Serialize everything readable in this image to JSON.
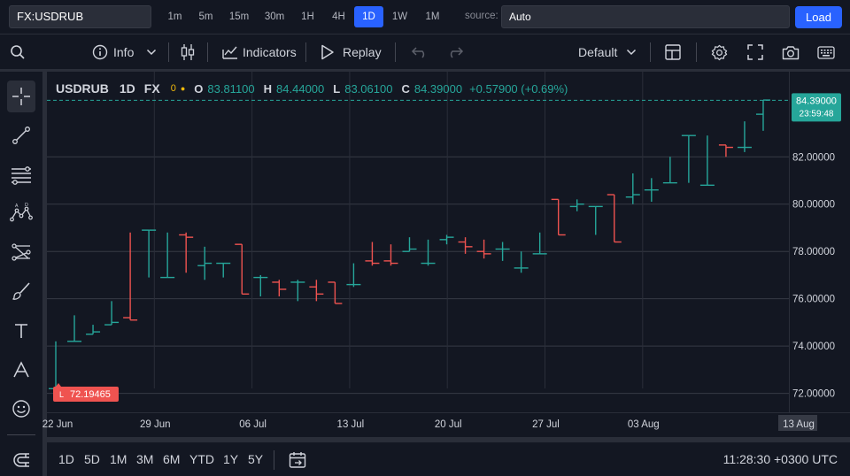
{
  "topbar": {
    "symbol": "FX:USDRUB",
    "intervals": [
      "1m",
      "5m",
      "15m",
      "30m",
      "1H",
      "4H",
      "1D",
      "1W",
      "1M"
    ],
    "active_interval": "1D",
    "source_label": "source:",
    "source_value": "Auto",
    "load_label": "Load"
  },
  "toolbar": {
    "info_label": "Info",
    "indicators_label": "Indicators",
    "replay_label": "Replay",
    "layout_label": "Default"
  },
  "legend": {
    "symbol": "USDRUB",
    "interval": "1D",
    "exchange": "FX",
    "zero": "0",
    "open_key": "O",
    "open": "83.81100",
    "high_key": "H",
    "high": "84.44000",
    "low_key": "L",
    "low": "83.06100",
    "close_key": "C",
    "close": "84.39000",
    "change": "+0.57900 (+0.69%)"
  },
  "colors": {
    "up": "#26a69a",
    "down": "#ef5350",
    "accent": "#2962ff",
    "background": "#131722"
  },
  "chart_data": {
    "type": "ohlc",
    "ylim": [
      71.2,
      85.6
    ],
    "y_ticks": [
      "72.00000",
      "74.00000",
      "76.00000",
      "78.00000",
      "80.00000",
      "82.00000"
    ],
    "x_ticks": [
      "22 Jun",
      "29 Jun",
      "06 Jul",
      "13 Jul",
      "20 Jul",
      "27 Jul",
      "03 Aug",
      "13 Aug"
    ],
    "last_price": "84.39000",
    "countdown": "23:59:48",
    "low_marker_key": "L",
    "low_marker": "72.19465",
    "bars": [
      {
        "o": 72.2,
        "h": 74.2,
        "l": 72.2,
        "c": 72.2
      },
      {
        "o": 74.2,
        "h": 75.3,
        "l": 74.2,
        "c": 74.2
      },
      {
        "o": 74.5,
        "h": 74.9,
        "l": 74.5,
        "c": 74.6
      },
      {
        "o": 74.9,
        "h": 75.9,
        "l": 74.9,
        "c": 75.0
      },
      {
        "o": 75.2,
        "h": 78.8,
        "l": 75.1,
        "c": 75.1
      },
      {
        "o": 78.9,
        "h": 78.9,
        "l": 76.9,
        "c": 78.9
      },
      {
        "o": 76.9,
        "h": 78.8,
        "l": 76.9,
        "c": 76.9
      },
      {
        "o": 78.7,
        "h": 78.8,
        "l": 77.1,
        "c": 78.6
      },
      {
        "o": 77.4,
        "h": 78.2,
        "l": 76.8,
        "c": 77.5
      },
      {
        "o": 77.5,
        "h": 77.5,
        "l": 76.9,
        "c": 77.5
      },
      {
        "o": 78.3,
        "h": 78.3,
        "l": 76.2,
        "c": 76.2
      },
      {
        "o": 76.9,
        "h": 77.0,
        "l": 76.1,
        "c": 76.9
      },
      {
        "o": 76.7,
        "h": 76.8,
        "l": 76.1,
        "c": 76.4
      },
      {
        "o": 76.7,
        "h": 76.8,
        "l": 75.9,
        "c": 76.7
      },
      {
        "o": 76.5,
        "h": 76.8,
        "l": 75.9,
        "c": 76.2
      },
      {
        "o": 76.7,
        "h": 76.7,
        "l": 75.8,
        "c": 75.8
      },
      {
        "o": 76.6,
        "h": 77.5,
        "l": 76.5,
        "c": 76.6
      },
      {
        "o": 77.6,
        "h": 78.4,
        "l": 77.4,
        "c": 77.5
      },
      {
        "o": 77.6,
        "h": 78.3,
        "l": 77.4,
        "c": 77.5
      },
      {
        "o": 78.0,
        "h": 78.6,
        "l": 78.0,
        "c": 78.1
      },
      {
        "o": 77.5,
        "h": 78.5,
        "l": 77.4,
        "c": 77.5
      },
      {
        "o": 78.5,
        "h": 78.7,
        "l": 78.3,
        "c": 78.6
      },
      {
        "o": 78.4,
        "h": 78.6,
        "l": 77.9,
        "c": 78.2
      },
      {
        "o": 78.0,
        "h": 78.5,
        "l": 77.7,
        "c": 77.9
      },
      {
        "o": 78.1,
        "h": 78.4,
        "l": 77.6,
        "c": 78.1
      },
      {
        "o": 77.3,
        "h": 78.0,
        "l": 77.1,
        "c": 77.3
      },
      {
        "o": 77.9,
        "h": 78.8,
        "l": 77.9,
        "c": 77.9
      },
      {
        "o": 80.2,
        "h": 80.2,
        "l": 78.7,
        "c": 78.7
      },
      {
        "o": 79.9,
        "h": 80.2,
        "l": 79.7,
        "c": 80.0
      },
      {
        "o": 79.9,
        "h": 79.9,
        "l": 78.7,
        "c": 79.9
      },
      {
        "o": 80.4,
        "h": 80.4,
        "l": 78.4,
        "c": 78.4
      },
      {
        "o": 80.3,
        "h": 81.3,
        "l": 80.0,
        "c": 80.4
      },
      {
        "o": 80.6,
        "h": 81.1,
        "l": 80.1,
        "c": 80.6
      },
      {
        "o": 80.9,
        "h": 82.0,
        "l": 80.9,
        "c": 80.9
      },
      {
        "o": 82.9,
        "h": 82.9,
        "l": 80.9,
        "c": 82.9
      },
      {
        "o": 80.8,
        "h": 82.9,
        "l": 80.8,
        "c": 80.8
      },
      {
        "o": 82.5,
        "h": 82.5,
        "l": 82.0,
        "c": 82.4
      },
      {
        "o": 82.4,
        "h": 83.5,
        "l": 82.2,
        "c": 82.4
      },
      {
        "o": 83.8,
        "h": 84.4,
        "l": 83.1,
        "c": 84.4
      }
    ]
  },
  "bottombar": {
    "ranges": [
      "1D",
      "5D",
      "1M",
      "3M",
      "6M",
      "YTD",
      "1Y",
      "5Y"
    ],
    "clock": "11:28:30 +0300 UTC"
  }
}
